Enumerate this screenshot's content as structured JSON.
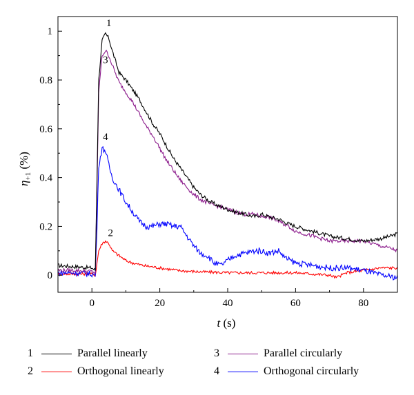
{
  "chart_data": {
    "type": "line",
    "xlabel_var": "t",
    "xlabel_unit": " (s)",
    "ylabel_main": "η",
    "ylabel_sub": "+1",
    "ylabel_unit": " (%)",
    "xlim": [
      -10,
      90
    ],
    "ylim": [
      -0.07,
      1.06
    ],
    "xticks": [
      "0",
      "20",
      "40",
      "60",
      "80"
    ],
    "yticks": [
      "0",
      "0.2",
      "0.4",
      "0.6",
      "0.8",
      "1"
    ],
    "grid": false,
    "legend_placement": "bottom",
    "series": [
      {
        "name": "Parallel linearly",
        "label": "1",
        "color": "#000000",
        "noise": 0.008,
        "points": [
          [
            -10,
            0.04
          ],
          [
            -5,
            0.035
          ],
          [
            0,
            0.03
          ],
          [
            1,
            0.02
          ],
          [
            1.5,
            0.4
          ],
          [
            2,
            0.8
          ],
          [
            3,
            0.96
          ],
          [
            4,
            0.99
          ],
          [
            5,
            0.97
          ],
          [
            6,
            0.92
          ],
          [
            8,
            0.83
          ],
          [
            10,
            0.8
          ],
          [
            12,
            0.76
          ],
          [
            14,
            0.72
          ],
          [
            16,
            0.67
          ],
          [
            18,
            0.62
          ],
          [
            20,
            0.58
          ],
          [
            22,
            0.53
          ],
          [
            24,
            0.48
          ],
          [
            26,
            0.44
          ],
          [
            28,
            0.4
          ],
          [
            30,
            0.36
          ],
          [
            32,
            0.33
          ],
          [
            35,
            0.3
          ],
          [
            38,
            0.28
          ],
          [
            40,
            0.27
          ],
          [
            42,
            0.26
          ],
          [
            45,
            0.25
          ],
          [
            48,
            0.24
          ],
          [
            50,
            0.25
          ],
          [
            52,
            0.24
          ],
          [
            55,
            0.23
          ],
          [
            58,
            0.21
          ],
          [
            60,
            0.2
          ],
          [
            65,
            0.18
          ],
          [
            70,
            0.16
          ],
          [
            75,
            0.15
          ],
          [
            80,
            0.14
          ],
          [
            85,
            0.15
          ],
          [
            88,
            0.16
          ],
          [
            90,
            0.17
          ]
        ]
      },
      {
        "name": "Orthogonal linearly",
        "label": "2",
        "color": "#ff0000",
        "noise": 0.006,
        "points": [
          [
            -10,
            0.005
          ],
          [
            -5,
            0.005
          ],
          [
            0,
            0.005
          ],
          [
            1,
            0.0
          ],
          [
            1.5,
            0.05
          ],
          [
            2,
            0.1
          ],
          [
            3,
            0.13
          ],
          [
            4,
            0.14
          ],
          [
            5,
            0.13
          ],
          [
            6,
            0.1
          ],
          [
            8,
            0.08
          ],
          [
            10,
            0.06
          ],
          [
            12,
            0.05
          ],
          [
            15,
            0.04
          ],
          [
            20,
            0.03
          ],
          [
            25,
            0.02
          ],
          [
            30,
            0.015
          ],
          [
            40,
            0.01
          ],
          [
            50,
            0.01
          ],
          [
            60,
            0.01
          ],
          [
            65,
            0.005
          ],
          [
            70,
            0.0
          ],
          [
            72,
            -0.01
          ],
          [
            75,
            0.01
          ],
          [
            80,
            0.02
          ],
          [
            85,
            0.03
          ],
          [
            90,
            0.03
          ]
        ]
      },
      {
        "name": "Parallel circularly",
        "label": "3",
        "color": "#8b1a8b",
        "noise": 0.008,
        "points": [
          [
            -10,
            0.02
          ],
          [
            -5,
            0.02
          ],
          [
            0,
            0.015
          ],
          [
            1,
            0.01
          ],
          [
            1.5,
            0.35
          ],
          [
            2,
            0.75
          ],
          [
            3,
            0.9
          ],
          [
            4,
            0.92
          ],
          [
            5,
            0.9
          ],
          [
            6,
            0.86
          ],
          [
            8,
            0.79
          ],
          [
            10,
            0.75
          ],
          [
            12,
            0.71
          ],
          [
            14,
            0.66
          ],
          [
            16,
            0.61
          ],
          [
            18,
            0.57
          ],
          [
            20,
            0.52
          ],
          [
            22,
            0.47
          ],
          [
            24,
            0.43
          ],
          [
            26,
            0.39
          ],
          [
            28,
            0.36
          ],
          [
            30,
            0.33
          ],
          [
            32,
            0.31
          ],
          [
            35,
            0.29
          ],
          [
            38,
            0.28
          ],
          [
            40,
            0.27
          ],
          [
            42,
            0.26
          ],
          [
            45,
            0.25
          ],
          [
            48,
            0.25
          ],
          [
            50,
            0.24
          ],
          [
            52,
            0.24
          ],
          [
            55,
            0.22
          ],
          [
            58,
            0.2
          ],
          [
            60,
            0.18
          ],
          [
            65,
            0.16
          ],
          [
            70,
            0.14
          ],
          [
            75,
            0.14
          ],
          [
            80,
            0.14
          ],
          [
            85,
            0.12
          ],
          [
            88,
            0.11
          ],
          [
            90,
            0.1
          ]
        ]
      },
      {
        "name": "Orthogonal circularly",
        "label": "4",
        "color": "#0000ff",
        "noise": 0.012,
        "points": [
          [
            -10,
            0.01
          ],
          [
            -5,
            0.01
          ],
          [
            0,
            0.005
          ],
          [
            1,
            0.0
          ],
          [
            1.5,
            0.2
          ],
          [
            2,
            0.45
          ],
          [
            3,
            0.52
          ],
          [
            4,
            0.51
          ],
          [
            5,
            0.45
          ],
          [
            6,
            0.4
          ],
          [
            8,
            0.35
          ],
          [
            10,
            0.3
          ],
          [
            12,
            0.26
          ],
          [
            14,
            0.22
          ],
          [
            16,
            0.2
          ],
          [
            18,
            0.2
          ],
          [
            20,
            0.21
          ],
          [
            22,
            0.21
          ],
          [
            24,
            0.2
          ],
          [
            26,
            0.2
          ],
          [
            28,
            0.16
          ],
          [
            30,
            0.12
          ],
          [
            32,
            0.09
          ],
          [
            34,
            0.08
          ],
          [
            36,
            0.05
          ],
          [
            38,
            0.04
          ],
          [
            40,
            0.06
          ],
          [
            42,
            0.08
          ],
          [
            45,
            0.09
          ],
          [
            48,
            0.1
          ],
          [
            50,
            0.1
          ],
          [
            52,
            0.09
          ],
          [
            55,
            0.1
          ],
          [
            57,
            0.07
          ],
          [
            60,
            0.05
          ],
          [
            65,
            0.04
          ],
          [
            70,
            0.03
          ],
          [
            75,
            0.03
          ],
          [
            80,
            0.02
          ],
          [
            85,
            0.0
          ],
          [
            90,
            -0.01
          ]
        ]
      }
    ]
  }
}
